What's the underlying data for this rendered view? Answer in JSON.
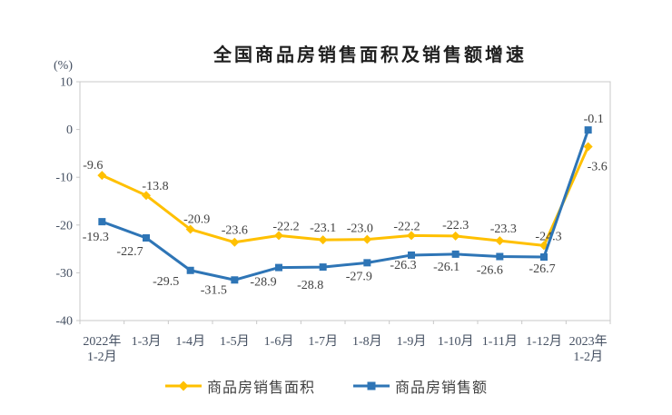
{
  "chart_data": {
    "type": "line",
    "title": "全国商品房销售面积及销售额增速",
    "ylabel": "(%)",
    "xlabel": "",
    "categories": [
      "2022年\n1-2月",
      "1-3月",
      "1-4月",
      "1-5月",
      "1-6月",
      "1-7月",
      "1-8月",
      "1-9月",
      "1-10月",
      "1-11月",
      "1-12月",
      "2023年\n1-2月"
    ],
    "series": [
      {
        "name": "商品房销售面积",
        "color": "#FFC000",
        "marker": "diamond",
        "values": [
          -9.6,
          -13.8,
          -20.9,
          -23.6,
          -22.2,
          -23.1,
          -23.0,
          -22.2,
          -22.3,
          -23.3,
          -24.3,
          -3.6
        ]
      },
      {
        "name": "商品房销售额",
        "color": "#2E75B6",
        "marker": "square",
        "values": [
          -19.3,
          -22.7,
          -29.5,
          -31.5,
          -28.9,
          -28.8,
          -27.9,
          -26.3,
          -26.1,
          -26.6,
          -26.7,
          -0.1
        ]
      }
    ],
    "ylim": [
      -40,
      10
    ],
    "yticks": [
      10,
      0,
      -10,
      -20,
      -30,
      -40
    ],
    "grid": false,
    "data_labels": true,
    "legend_position": "bottom",
    "axis_color": "#C8C8C8"
  }
}
